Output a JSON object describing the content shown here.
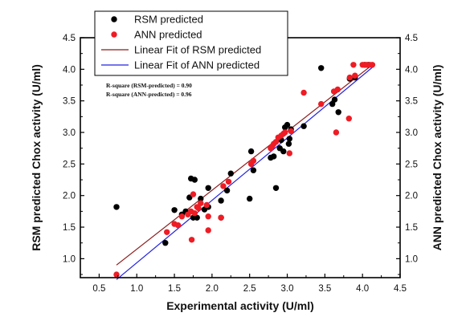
{
  "chart_data": {
    "type": "scatter",
    "title": "",
    "xlabel": "Experimental activity (U/ml)",
    "ylabel_left": "RSM predicted Chox activity (U/ml)",
    "ylabel_right": "ANN predicted Chox activity (U/ml)",
    "xlim": [
      0.25,
      4.5
    ],
    "ylim": [
      0.7,
      4.5
    ],
    "xticks": [
      "0.5",
      "1.0",
      "1.5",
      "2.0",
      "2.5",
      "3.0",
      "3.5",
      "4.0",
      "4.5"
    ],
    "yticks": [
      "1.0",
      "1.5",
      "2.0",
      "2.5",
      "3.0",
      "3.5",
      "4.0",
      "4.5"
    ],
    "grid": false,
    "legend_position": "top-left",
    "series": [
      {
        "name": "RSM predicted",
        "kind": "scatter",
        "color": "#000000",
        "points": [
          [
            0.73,
            1.82
          ],
          [
            1.38,
            1.25
          ],
          [
            1.5,
            1.77
          ],
          [
            1.6,
            1.7
          ],
          [
            1.65,
            1.75
          ],
          [
            1.7,
            1.97
          ],
          [
            1.72,
            2.27
          ],
          [
            1.77,
            2.25
          ],
          [
            1.75,
            1.65
          ],
          [
            1.8,
            1.65
          ],
          [
            1.85,
            1.95
          ],
          [
            1.9,
            1.78
          ],
          [
            1.95,
            1.82
          ],
          [
            1.95,
            2.12
          ],
          [
            2.12,
            1.65
          ],
          [
            2.12,
            1.92
          ],
          [
            2.2,
            2.08
          ],
          [
            2.25,
            2.35
          ],
          [
            2.5,
            1.95
          ],
          [
            2.52,
            2.7
          ],
          [
            2.55,
            2.4
          ],
          [
            2.78,
            2.6
          ],
          [
            2.82,
            2.62
          ],
          [
            2.85,
            2.12
          ],
          [
            2.9,
            2.75
          ],
          [
            2.92,
            2.88
          ],
          [
            2.95,
            2.7
          ],
          [
            2.97,
            3.08
          ],
          [
            3.0,
            3.12
          ],
          [
            3.02,
            2.82
          ],
          [
            3.03,
            2.9
          ],
          [
            3.05,
            3.05
          ],
          [
            3.22,
            3.1
          ],
          [
            3.45,
            4.02
          ],
          [
            3.6,
            3.45
          ],
          [
            3.63,
            3.52
          ],
          [
            3.68,
            3.32
          ],
          [
            3.83,
            3.85
          ],
          [
            3.9,
            3.87
          ],
          [
            4.03,
            4.07
          ],
          [
            4.08,
            4.07
          ]
        ]
      },
      {
        "name": "ANN predicted",
        "kind": "scatter",
        "color": "#ee1c24",
        "points": [
          [
            0.73,
            0.75
          ],
          [
            1.4,
            1.42
          ],
          [
            1.5,
            1.55
          ],
          [
            1.55,
            1.53
          ],
          [
            1.6,
            1.67
          ],
          [
            1.68,
            1.7
          ],
          [
            1.72,
            1.75
          ],
          [
            1.73,
            1.3
          ],
          [
            1.75,
            2.02
          ],
          [
            1.77,
            1.72
          ],
          [
            1.8,
            1.82
          ],
          [
            1.82,
            1.8
          ],
          [
            1.85,
            1.88
          ],
          [
            1.93,
            1.85
          ],
          [
            1.95,
            1.67
          ],
          [
            1.95,
            1.45
          ],
          [
            2.12,
            1.65
          ],
          [
            2.15,
            2.15
          ],
          [
            2.22,
            2.22
          ],
          [
            2.52,
            2.5
          ],
          [
            2.55,
            2.55
          ],
          [
            2.78,
            2.75
          ],
          [
            2.8,
            2.78
          ],
          [
            2.82,
            2.82
          ],
          [
            2.85,
            2.85
          ],
          [
            2.88,
            2.92
          ],
          [
            2.92,
            2.95
          ],
          [
            2.95,
            2.98
          ],
          [
            2.97,
            3.0
          ],
          [
            3.03,
            2.67
          ],
          [
            3.05,
            3.02
          ],
          [
            3.22,
            3.63
          ],
          [
            3.45,
            3.45
          ],
          [
            3.62,
            3.65
          ],
          [
            3.65,
            3.0
          ],
          [
            3.67,
            3.68
          ],
          [
            3.82,
            3.22
          ],
          [
            3.83,
            3.87
          ],
          [
            3.88,
            4.07
          ],
          [
            3.9,
            3.9
          ],
          [
            4.0,
            4.07
          ],
          [
            4.03,
            4.07
          ],
          [
            4.06,
            4.07
          ],
          [
            4.1,
            4.07
          ],
          [
            4.13,
            4.07
          ]
        ]
      },
      {
        "name": "Linear Fit of RSM predicted",
        "kind": "line",
        "color": "#8b1a1a",
        "points": [
          [
            0.73,
            0.9
          ],
          [
            4.13,
            4.07
          ]
        ]
      },
      {
        "name": "Linear Fit of ANN predicted",
        "kind": "line",
        "color": "#2323e0",
        "points": [
          [
            0.73,
            0.67
          ],
          [
            4.13,
            4.03
          ]
        ]
      }
    ],
    "annotations": [
      "R-square (RSM-predicted) = 0.90",
      "R-square (ANN-predicted) = 0.96"
    ]
  }
}
